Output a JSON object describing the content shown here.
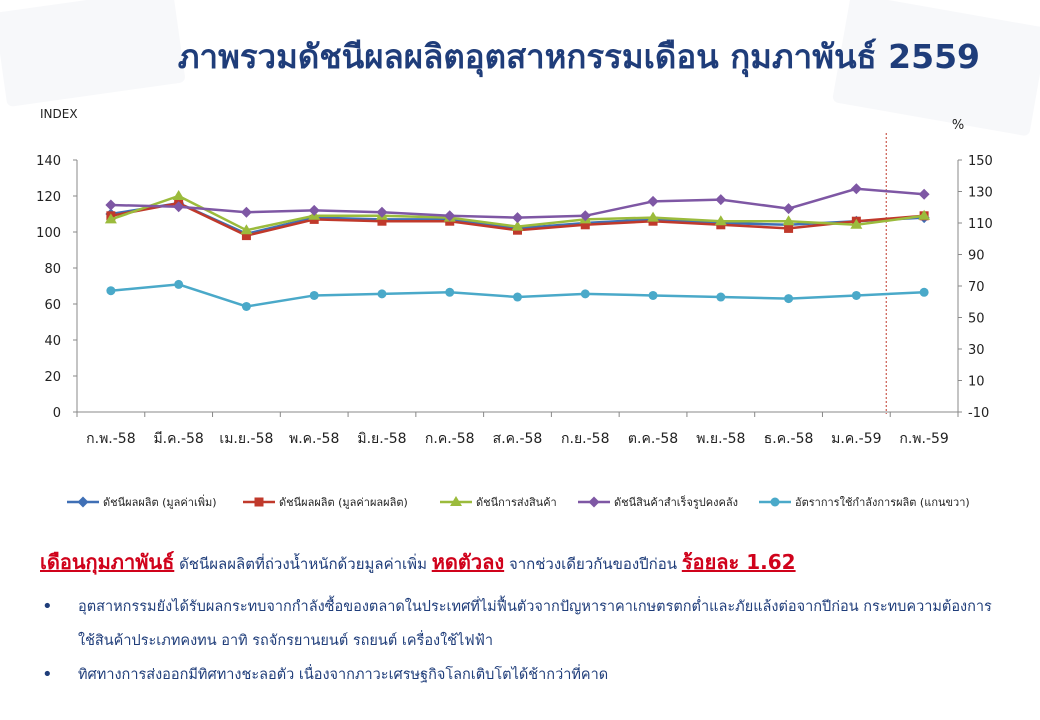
{
  "title": "ภาพรวมดัชนีผลผลิตอุตสาหกรรมเดือน กุมภาพันธ์ 2559",
  "summary": {
    "lead": "เดือนกุมภาพันธ์",
    "text1": "ดัชนีผลผลิตที่ถ่วงน้ำหนักด้วยมูลค่าเพิ่ม",
    "change": "หดตัวลง",
    "text2": "จากช่วงเดียวกันของปีก่อน",
    "rate": "ร้อยละ 1.62"
  },
  "bullets": [
    "อุตสาหกรรมยังได้รับผลกระทบจากกำลังซื้อของตลาดในประเทศที่ไม่ฟื้นตัวจากปัญหาราคาเกษตรตกต่ำและภัยแล้งต่อจากปีก่อน กระทบความต้องการใช้สินค้าประเภทคงทน อาทิ รถจักรยานยนต์ รถยนต์ เครื่องใช้ไฟฟ้า",
    "ทิศทางการส่งออกมีทิศทางชะลอตัว เนื่องจากภาวะเศรษฐกิจโลกเติบโตได้ช้ากว่าที่คาด"
  ],
  "chart_data": {
    "type": "line",
    "ylabel_left": "INDEX",
    "ylabel_right": "%",
    "categories": [
      "ก.พ.-58",
      "มี.ค.-58",
      "เม.ย.-58",
      "พ.ค.-58",
      "มิ.ย.-58",
      "ก.ค.-58",
      "ส.ค.-58",
      "ก.ย.-58",
      "ต.ค.-58",
      "พ.ย.-58",
      "ธ.ค.-58",
      "ม.ค.-59",
      "ก.พ.-59"
    ],
    "y_left_ticks": [
      "0",
      "20",
      "40",
      "60",
      "80",
      "100",
      "120",
      "140"
    ],
    "y_right_ticks": [
      "-10",
      "10",
      "30",
      "50",
      "70",
      "90",
      "110",
      "130",
      "150"
    ],
    "ylim_left": [
      0,
      140
    ],
    "ylim_right": [
      -10,
      150
    ],
    "divider_after_category": "ม.ค.-59",
    "legend_position": "bottom",
    "series": [
      {
        "name": "ดัชนีผลผลิต (มูลค่าเพิ่ม)",
        "axis": "left",
        "color": "#3f6fb5",
        "marker": "diamond",
        "values": [
          110,
          116,
          99,
          108,
          107,
          107,
          102,
          105,
          107,
          105,
          104,
          106,
          108
        ]
      },
      {
        "name": "ดัชนีผลผลิต (มูลค่าผลผลิต)",
        "axis": "left",
        "color": "#c0392b",
        "marker": "square",
        "values": [
          109,
          116,
          98,
          107,
          106,
          106,
          101,
          104,
          106,
          104,
          102,
          106,
          109
        ]
      },
      {
        "name": "ดัชนีการส่งสินค้า",
        "axis": "left",
        "color": "#9bbb3c",
        "marker": "triangle",
        "values": [
          107,
          120,
          101,
          109,
          109,
          108,
          103,
          107,
          108,
          106,
          106,
          104,
          109
        ]
      },
      {
        "name": "ดัชนีสินค้าสำเร็จรูปคงคลัง",
        "axis": "left",
        "color": "#7e57a4",
        "marker": "diamond",
        "values": [
          115,
          114,
          111,
          112,
          111,
          109,
          108,
          109,
          117,
          118,
          113,
          124,
          121
        ]
      },
      {
        "name": "อัตราการใช้กำลังการผลิต (แกนขวา)",
        "axis": "right",
        "color": "#4aa9c9",
        "marker": "circle",
        "values": [
          67,
          71,
          57,
          64,
          65,
          66,
          63,
          65,
          64,
          63,
          62,
          64,
          66
        ]
      }
    ]
  }
}
